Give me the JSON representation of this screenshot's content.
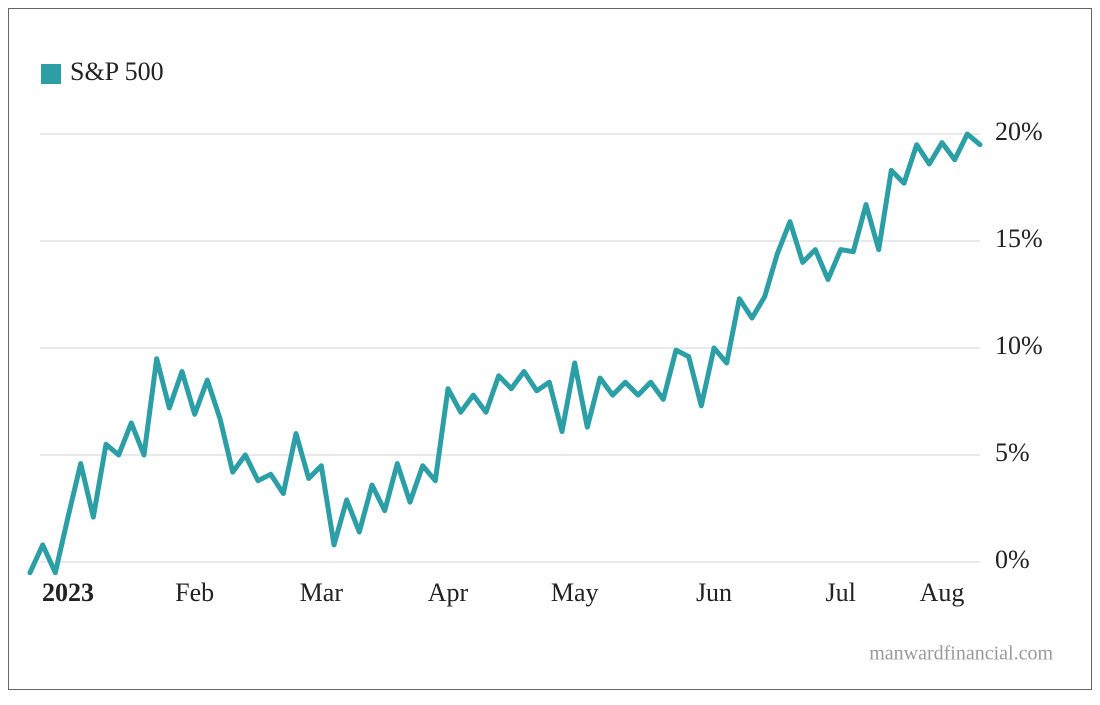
{
  "chart_data": {
    "type": "line",
    "legend": "top-left",
    "grid": true,
    "source": "manwardfinancial.com",
    "ylim": [
      -1,
      21
    ],
    "yticks": [
      {
        "value": 0,
        "label": "0%"
      },
      {
        "value": 5,
        "label": "5%"
      },
      {
        "value": 10,
        "label": "10%"
      },
      {
        "value": 15,
        "label": "15%"
      },
      {
        "value": 20,
        "label": "20%"
      }
    ],
    "categories": [
      null,
      null,
      null,
      "2023",
      null,
      null,
      null,
      null,
      null,
      null,
      null,
      null,
      null,
      "Feb",
      null,
      null,
      null,
      null,
      null,
      null,
      null,
      null,
      null,
      "Mar",
      null,
      null,
      null,
      null,
      null,
      null,
      null,
      null,
      null,
      "Apr",
      null,
      null,
      null,
      null,
      null,
      null,
      null,
      null,
      null,
      "May",
      null,
      null,
      null,
      null,
      null,
      null,
      null,
      null,
      null,
      null,
      "Jun",
      null,
      null,
      null,
      null,
      null,
      null,
      null,
      null,
      null,
      "Jul",
      null,
      null,
      null,
      null,
      null,
      null,
      null,
      "Aug",
      null,
      null,
      null
    ],
    "series": [
      {
        "name": "S&P 500",
        "color": "#2b9ea6",
        "values": [
          -0.5,
          0.8,
          -0.5,
          2.1,
          4.6,
          2.1,
          5.5,
          5.0,
          6.5,
          5.0,
          9.5,
          7.2,
          8.9,
          6.9,
          8.5,
          6.7,
          4.2,
          5.0,
          3.8,
          4.1,
          3.2,
          6.0,
          3.9,
          4.5,
          0.8,
          2.9,
          1.4,
          3.6,
          2.4,
          4.6,
          2.8,
          4.5,
          3.8,
          8.1,
          7.0,
          7.8,
          7.0,
          8.7,
          8.1,
          8.9,
          8.0,
          8.4,
          6.1,
          9.3,
          6.3,
          8.6,
          7.8,
          8.4,
          7.8,
          8.4,
          7.6,
          9.9,
          9.6,
          7.3,
          10.0,
          9.3,
          12.3,
          11.4,
          12.4,
          14.4,
          15.9,
          14.0,
          14.6,
          13.2,
          14.6,
          14.5,
          16.7,
          14.6,
          18.3,
          17.7,
          19.5,
          18.6,
          19.6,
          18.8,
          20.0,
          19.5
        ]
      }
    ]
  }
}
